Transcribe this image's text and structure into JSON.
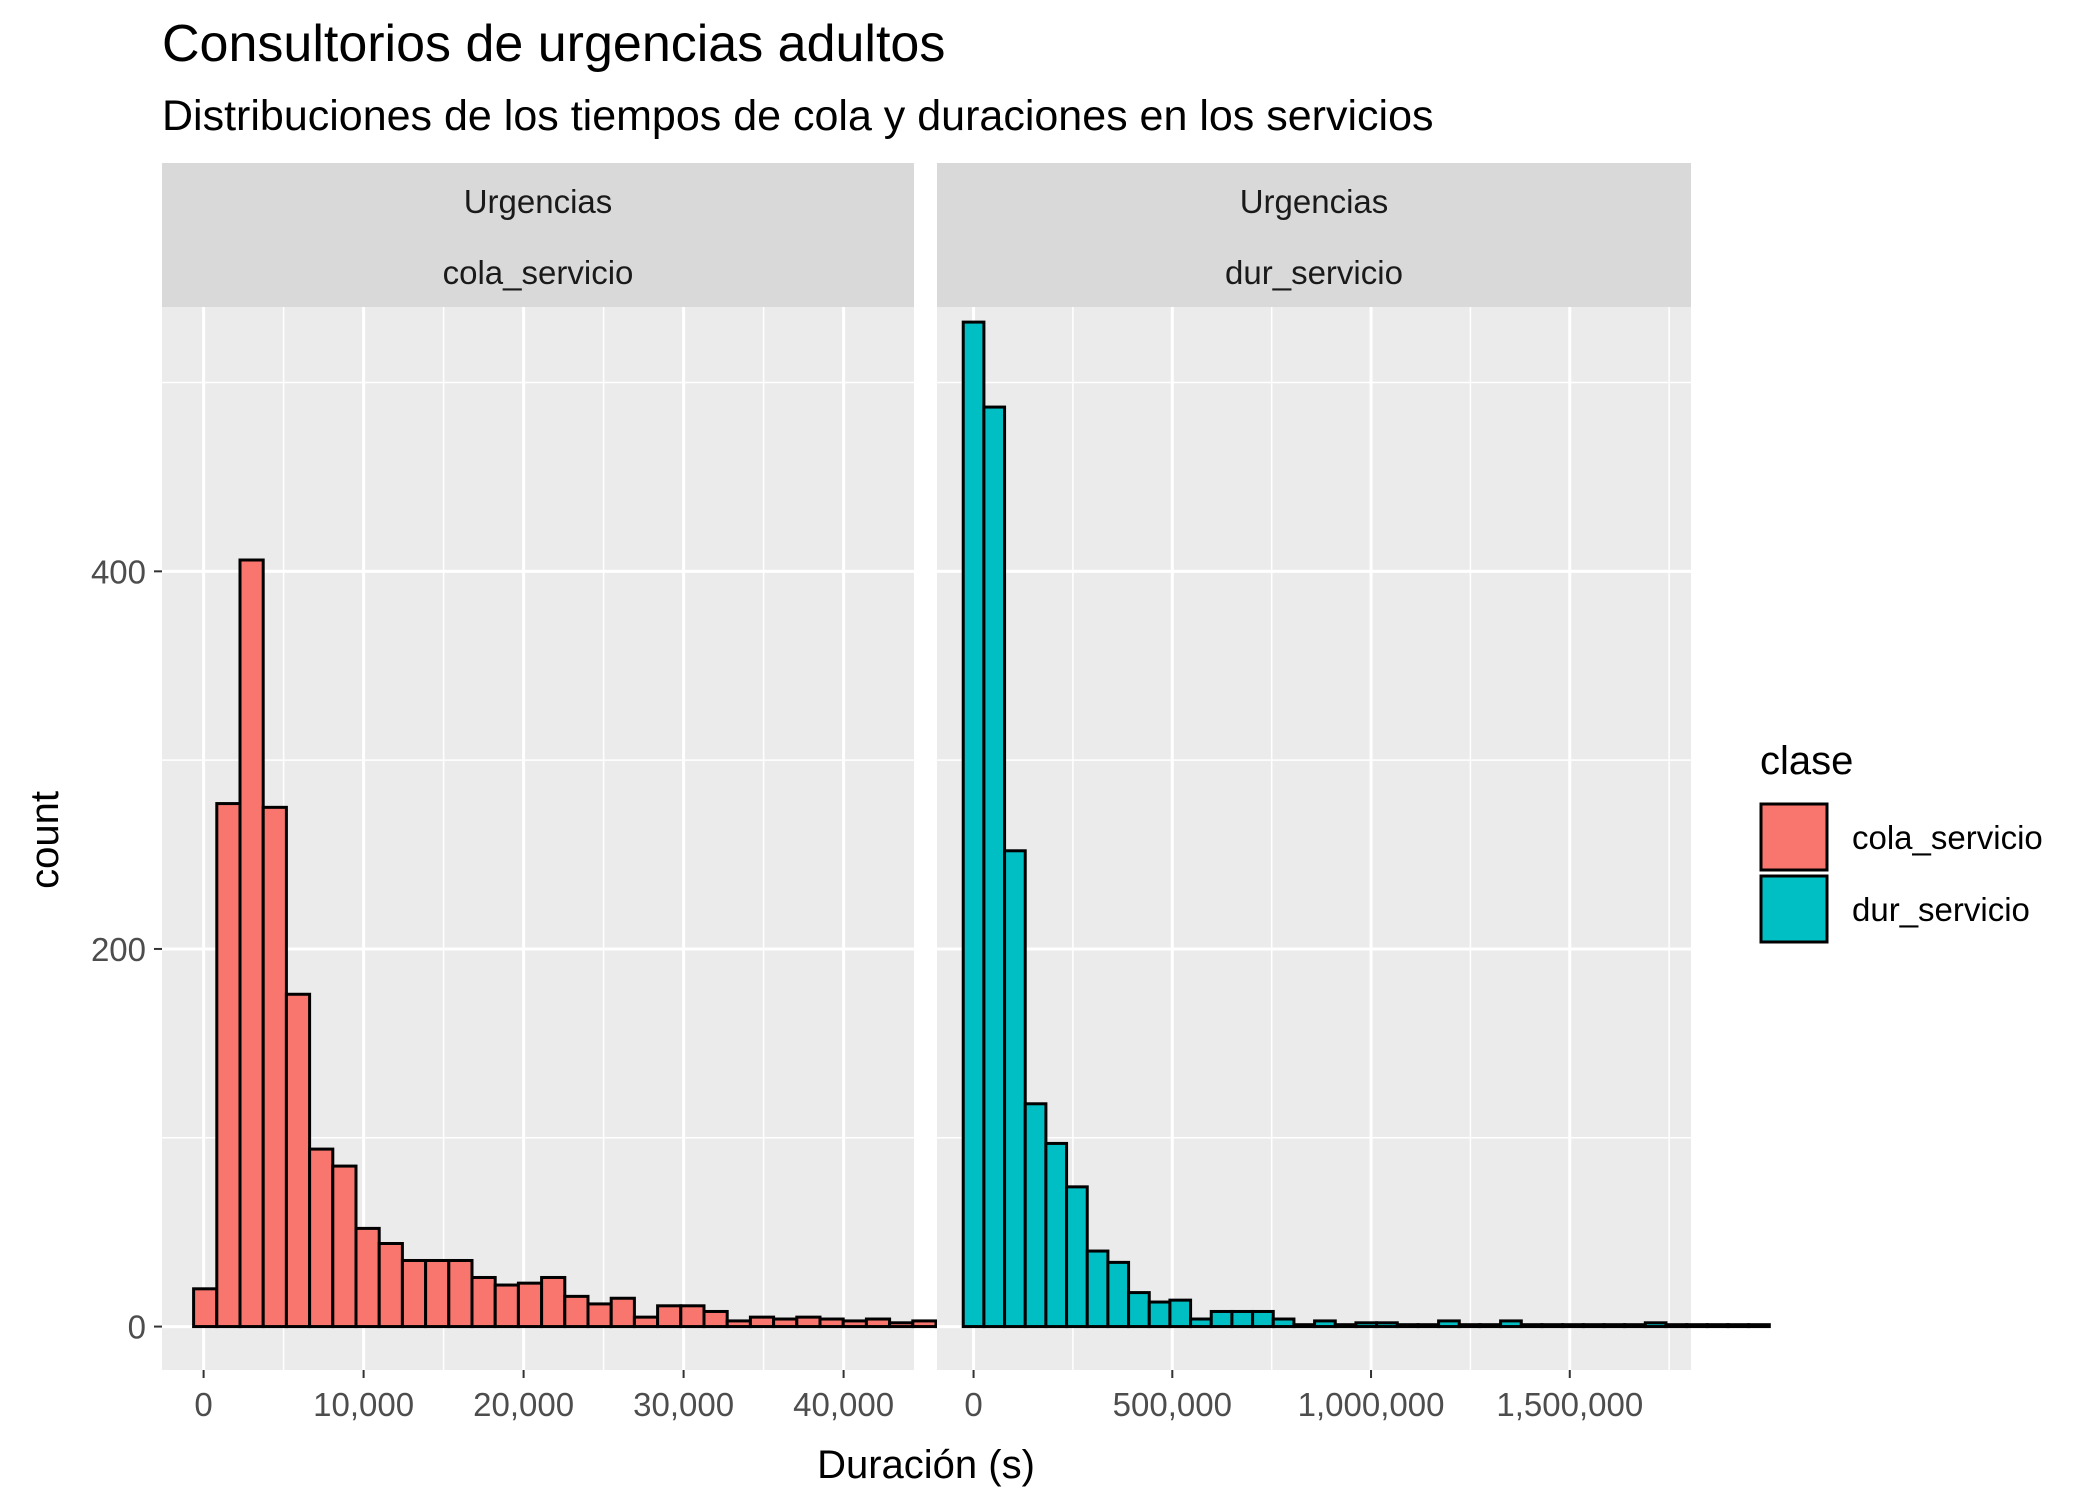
{
  "chart_data": {
    "type": "bar",
    "title": "Consultorios de urgencias adultos",
    "subtitle": "Distribuciones de los tiempos de cola y duraciones en los servicios",
    "xlabel": "Duración (s)",
    "ylabel": "count",
    "ylim": [
      -23,
      540
    ],
    "y_ticks": [
      0,
      200,
      400
    ],
    "y_tick_labels": [
      "0",
      "200",
      "400"
    ],
    "legend": {
      "title": "clase",
      "position": "right",
      "entries": [
        {
          "label": "cola_servicio",
          "color": "#F8766D"
        },
        {
          "label": "dur_servicio",
          "color": "#00BFC4"
        }
      ]
    },
    "panels": [
      {
        "strip": [
          "Urgencias",
          "cola_servicio"
        ],
        "series_name": "cola_servicio",
        "color": "#F8766D",
        "xlim": [
          -2600,
          44400
        ],
        "x_ticks": [
          0,
          10000,
          20000,
          30000,
          40000
        ],
        "x_tick_labels": [
          "0",
          "10,000",
          "20,000",
          "30,000",
          "40,000"
        ],
        "bin_start": -625,
        "bin_width": 1450,
        "counts": [
          20,
          277,
          406,
          275,
          176,
          94,
          85,
          52,
          44,
          35,
          35,
          35,
          26,
          22,
          23,
          26,
          16,
          12,
          15,
          5,
          11,
          11,
          8,
          3,
          5,
          4,
          5,
          4,
          3,
          4,
          2,
          3,
          2,
          2
        ]
      },
      {
        "strip": [
          "Urgencias",
          "dur_servicio"
        ],
        "series_name": "dur_servicio",
        "color": "#00BFC4",
        "xlim": [
          -92000,
          1805000
        ],
        "x_ticks": [
          0,
          500000,
          1000000,
          1500000
        ],
        "x_tick_labels": [
          "0",
          "500,000",
          "1,000,000",
          "1,500,000"
        ],
        "bin_start": -26000,
        "bin_width": 52000,
        "counts": [
          532,
          487,
          252,
          118,
          97,
          74,
          40,
          34,
          18,
          13,
          14,
          4,
          8,
          8,
          8,
          4,
          1,
          3,
          1,
          2,
          2,
          1,
          1,
          3,
          1,
          1,
          3,
          1,
          1,
          1,
          1,
          1,
          1,
          2,
          1,
          1,
          1,
          1,
          1
        ]
      }
    ]
  }
}
